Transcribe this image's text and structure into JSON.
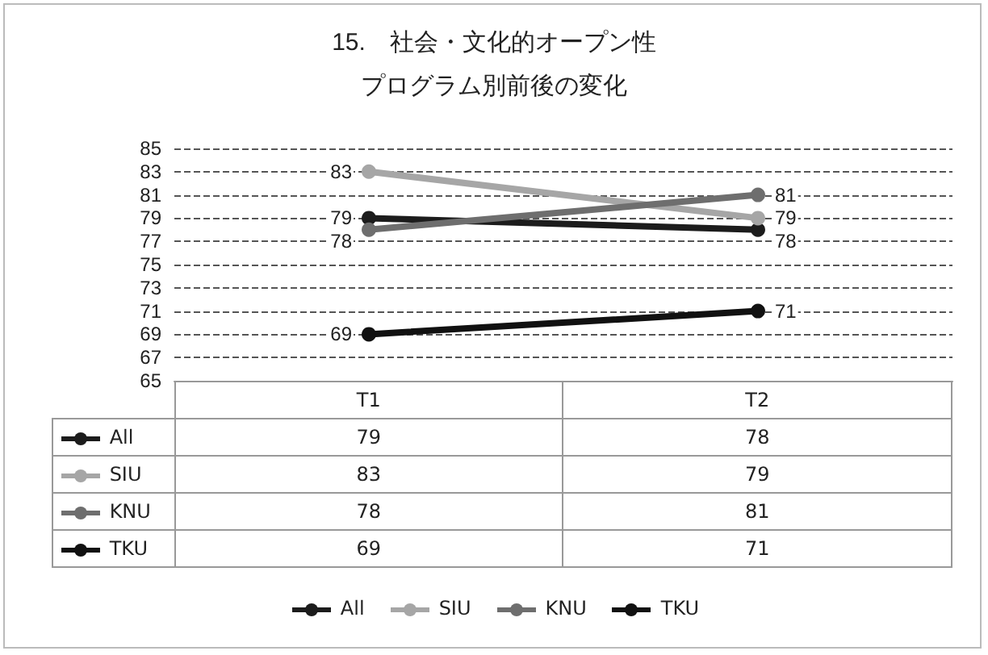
{
  "chart_data": {
    "type": "line",
    "title": "15.　社会・文化的オープン性",
    "subtitle": "プログラム別前後の変化",
    "categories": [
      "T1",
      "T2"
    ],
    "series": [
      {
        "name": "All",
        "color": "#1c1c1c",
        "values": [
          79,
          78
        ],
        "value_labels": [
          "79",
          "78"
        ]
      },
      {
        "name": "SIU",
        "color": "#a6a6a6",
        "values": [
          83,
          79
        ],
        "value_labels": [
          "83",
          "79"
        ]
      },
      {
        "name": "KNU",
        "color": "#6e6e6e",
        "values": [
          78,
          81
        ],
        "value_labels": [
          "78",
          "81"
        ]
      },
      {
        "name": "TKU",
        "color": "#111111",
        "values": [
          69,
          71
        ],
        "value_labels": [
          "69",
          "71"
        ]
      }
    ],
    "annotations": [
      "79",
      "78",
      "83",
      "79",
      "78",
      "81",
      "69",
      "71"
    ],
    "ylim": [
      65,
      85
    ],
    "yticks": [
      65,
      67,
      69,
      71,
      73,
      75,
      77,
      79,
      81,
      83,
      85
    ],
    "grid": "y",
    "marker": "circle",
    "legend": "bottom"
  }
}
